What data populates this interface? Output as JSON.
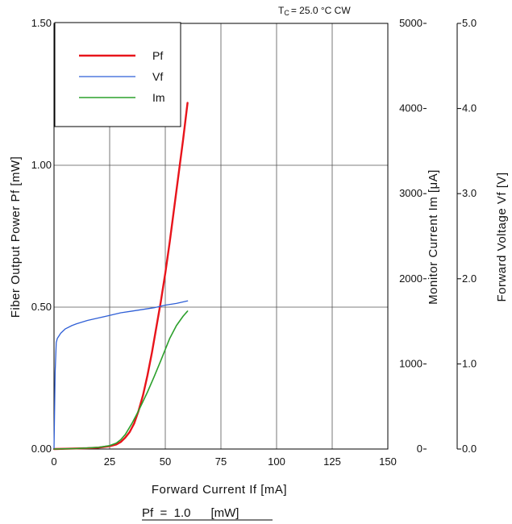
{
  "chart_data": {
    "type": "line",
    "condition": {
      "label": "T",
      "subscript": "C",
      "rest": "=  25.0 °C   CW"
    },
    "footer_note": "Pf  =  1.0      [mW]",
    "xaxis": {
      "label": "Forward  Current  If  [mA]",
      "range": [
        0,
        150
      ],
      "ticks": [
        "0",
        "25",
        "50",
        "75",
        "100",
        "125",
        "150"
      ]
    },
    "y_left": {
      "label": "Fiber  Output  Power    Pf  [mW]",
      "range": [
        0,
        1.5
      ],
      "ticks": [
        "0.00",
        "0.50",
        "1.00",
        "1.50"
      ]
    },
    "y_right1": {
      "label": "Monitor  Current    Im  [μA]",
      "range": [
        0,
        5000
      ],
      "ticks": [
        "0",
        "1000",
        "2000",
        "3000",
        "4000",
        "5000"
      ]
    },
    "y_right2": {
      "label": "Forward  Voltage    Vf  [V]",
      "range": [
        0,
        5.0
      ],
      "ticks": [
        "0.0",
        "1.0",
        "2.0",
        "3.0",
        "4.0",
        "5.0"
      ]
    },
    "grid": true,
    "legend_position": "top-left",
    "series": [
      {
        "name": "Pf",
        "axis": "left",
        "color": "#e8141b",
        "x": [
          0,
          5,
          10,
          15,
          20,
          25,
          28,
          30,
          32,
          34,
          36,
          38,
          40,
          42,
          44,
          46,
          48,
          50,
          52,
          54,
          56,
          58,
          60
        ],
        "y": [
          0.0,
          0.001,
          0.002,
          0.003,
          0.005,
          0.01,
          0.016,
          0.025,
          0.04,
          0.06,
          0.09,
          0.135,
          0.19,
          0.26,
          0.34,
          0.43,
          0.52,
          0.62,
          0.73,
          0.85,
          0.97,
          1.09,
          1.22
        ]
      },
      {
        "name": "Vf",
        "axis": "right2",
        "color": "#2f5fd6",
        "x": [
          0,
          0.5,
          1,
          1.5,
          2,
          3,
          5,
          8,
          10,
          15,
          20,
          25,
          30,
          35,
          40,
          45,
          50,
          55,
          60
        ],
        "y": [
          0.0,
          0.9,
          1.25,
          1.3,
          1.32,
          1.36,
          1.41,
          1.45,
          1.47,
          1.51,
          1.54,
          1.57,
          1.6,
          1.62,
          1.64,
          1.66,
          1.69,
          1.71,
          1.74
        ]
      },
      {
        "name": "Im",
        "axis": "right1",
        "color": "#2ca02c",
        "x": [
          0,
          10,
          20,
          25,
          28,
          30,
          32,
          35,
          38,
          40,
          42,
          45,
          48,
          50,
          52,
          55,
          58,
          60
        ],
        "y": [
          0,
          5,
          20,
          40,
          70,
          110,
          170,
          300,
          450,
          560,
          670,
          850,
          1040,
          1170,
          1300,
          1450,
          1560,
          1620
        ]
      }
    ]
  }
}
